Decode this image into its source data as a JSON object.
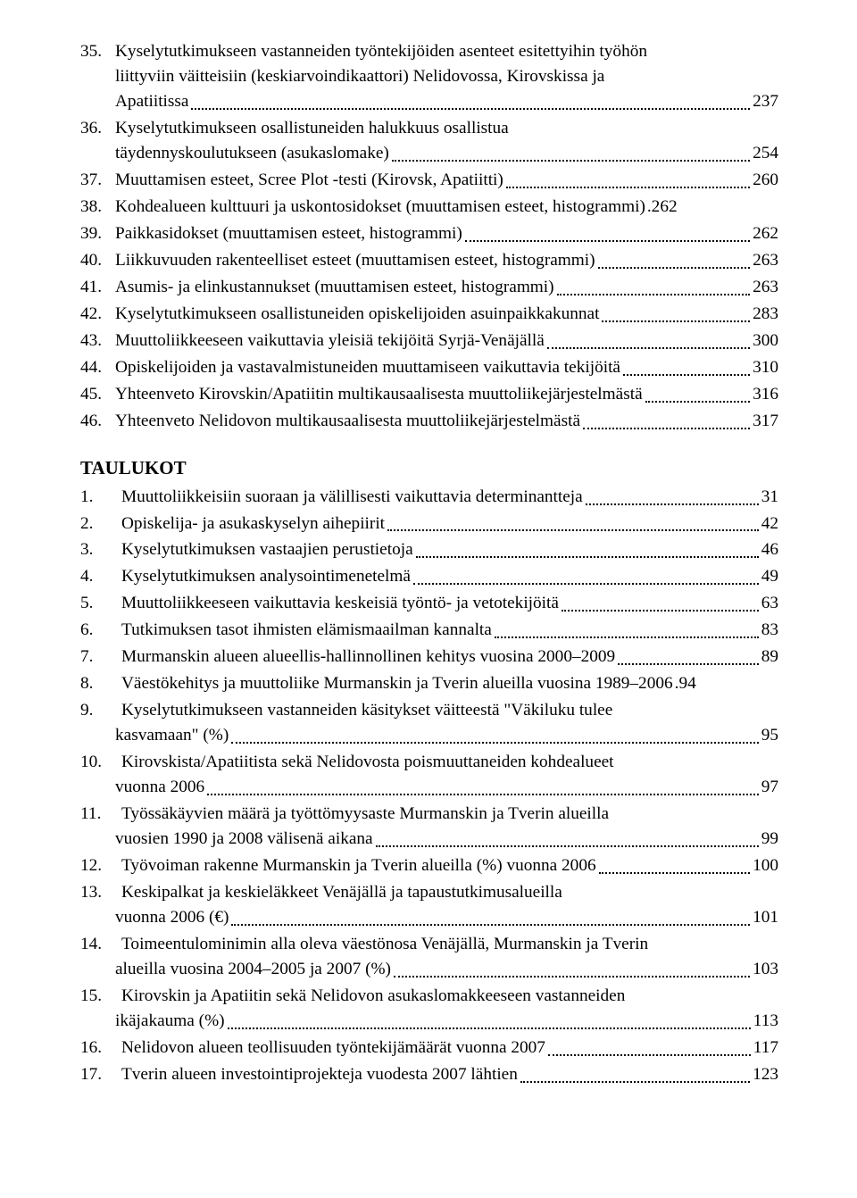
{
  "figures": [
    {
      "num": "35.",
      "lines": [
        "Kyselytutkimukseen vastanneiden työntekijöiden asenteet esitettyihin työhön",
        "liittyviin väitteisiin (keskiarvoindikaattori) Nelidovossa, Kirovskissa ja",
        "Apatiitissa"
      ],
      "page": "237"
    },
    {
      "num": "36.",
      "lines": [
        "Kyselytutkimukseen osallistuneiden halukkuus osallistua",
        "täydennyskoulutukseen (asukaslomake)"
      ],
      "page": "254"
    },
    {
      "num": "37.",
      "lines": [
        "Muuttamisen esteet, Scree Plot -testi (Kirovsk, Apatiitti)"
      ],
      "page": "260"
    },
    {
      "num": "38.",
      "lines": [
        "Kohdealueen kulttuuri ja uskontosidokset (muuttamisen esteet, histogrammi)"
      ],
      "page": "262",
      "nodots": true
    },
    {
      "num": "39.",
      "lines": [
        "Paikkasidokset (muuttamisen esteet, histogrammi)"
      ],
      "page": "262"
    },
    {
      "num": "40.",
      "lines": [
        "Liikkuvuuden rakenteelliset esteet (muuttamisen esteet, histogrammi)"
      ],
      "page": "263"
    },
    {
      "num": "41.",
      "lines": [
        "Asumis- ja elinkustannukset (muuttamisen esteet, histogrammi)"
      ],
      "page": "263"
    },
    {
      "num": "42.",
      "lines": [
        "Kyselytutkimukseen osallistuneiden opiskelijoiden asuinpaikkakunnat"
      ],
      "page": "283"
    },
    {
      "num": "43.",
      "lines": [
        "Muuttoliikkeeseen vaikuttavia yleisiä tekijöitä Syrjä-Venäjällä"
      ],
      "page": "300"
    },
    {
      "num": "44.",
      "lines": [
        "Opiskelijoiden ja vastavalmistuneiden muuttamiseen vaikuttavia tekijöitä"
      ],
      "page": "310"
    },
    {
      "num": "45.",
      "lines": [
        "Yhteenveto Kirovskin/Apatiitin multikausaalisesta muuttoliikejärjestelmästä"
      ],
      "page": "316"
    },
    {
      "num": "46.",
      "lines": [
        "Yhteenveto Nelidovon multikausaalisesta muuttoliikejärjestelmästä"
      ],
      "page": "317"
    }
  ],
  "tables_heading": "TAULUKOT",
  "tables": [
    {
      "num": "1.",
      "lines": [
        "Muuttoliikkeisiin suoraan ja välillisesti vaikuttavia determinantteja"
      ],
      "page": "31"
    },
    {
      "num": "2.",
      "lines": [
        "Opiskelija- ja asukaskyselyn aihepiirit"
      ],
      "page": "42"
    },
    {
      "num": "3.",
      "lines": [
        "Kyselytutkimuksen vastaajien perustietoja"
      ],
      "page": "46"
    },
    {
      "num": "4.",
      "lines": [
        "Kyselytutkimuksen analysointimenetelmä"
      ],
      "page": "49"
    },
    {
      "num": "5.",
      "lines": [
        "Muuttoliikkeeseen vaikuttavia keskeisiä työntö- ja vetotekijöitä"
      ],
      "page": "63"
    },
    {
      "num": "6.",
      "lines": [
        "Tutkimuksen tasot ihmisten elämismaailman kannalta"
      ],
      "page": "83"
    },
    {
      "num": "7.",
      "lines": [
        "Murmanskin alueen alueellis-hallinnollinen kehitys vuosina 2000–2009"
      ],
      "page": "89"
    },
    {
      "num": "8.",
      "lines": [
        "Väestökehitys ja muuttoliike Murmanskin ja Tverin alueilla vuosina 1989–2006"
      ],
      "page": "94",
      "nodots": true
    },
    {
      "num": "9.",
      "lines": [
        "Kyselytutkimukseen vastanneiden käsitykset väitteestä \"Väkiluku tulee",
        "kasvamaan\" (%)"
      ],
      "page": "95"
    },
    {
      "num": "10.",
      "lines": [
        "Kirovskista/Apatiitista sekä Nelidovosta poismuuttaneiden kohdealueet",
        "vuonna 2006"
      ],
      "page": "97"
    },
    {
      "num": "11.",
      "lines": [
        "Työssäkäyvien määrä ja työttömyysaste Murmanskin ja Tverin alueilla",
        "vuosien 1990 ja 2008 välisenä aikana"
      ],
      "page": "99"
    },
    {
      "num": "12.",
      "lines": [
        "Työvoiman rakenne Murmanskin ja Tverin alueilla (%) vuonna 2006"
      ],
      "page": "100"
    },
    {
      "num": "13.",
      "lines": [
        "Keskipalkat ja keskieläkkeet Venäjällä ja tapaustutkimusalueilla",
        "vuonna 2006 (€)"
      ],
      "page": "101"
    },
    {
      "num": "14.",
      "lines": [
        "Toimeentulominimin alla oleva väestönosa Venäjällä, Murmanskin ja Tverin",
        "alueilla vuosina 2004–2005 ja 2007 (%)"
      ],
      "page": "103"
    },
    {
      "num": "15.",
      "lines": [
        "Kirovskin ja Apatiitin sekä Nelidovon asukaslomakkeeseen vastanneiden",
        "ikäjakauma (%)"
      ],
      "page": "113"
    },
    {
      "num": "16.",
      "lines": [
        "Nelidovon alueen teollisuuden työntekijämäärät vuonna 2007"
      ],
      "page": "117"
    },
    {
      "num": "17.",
      "lines": [
        "Tverin alueen investointiprojekteja vuodesta 2007 lähtien"
      ],
      "page": "123"
    }
  ]
}
